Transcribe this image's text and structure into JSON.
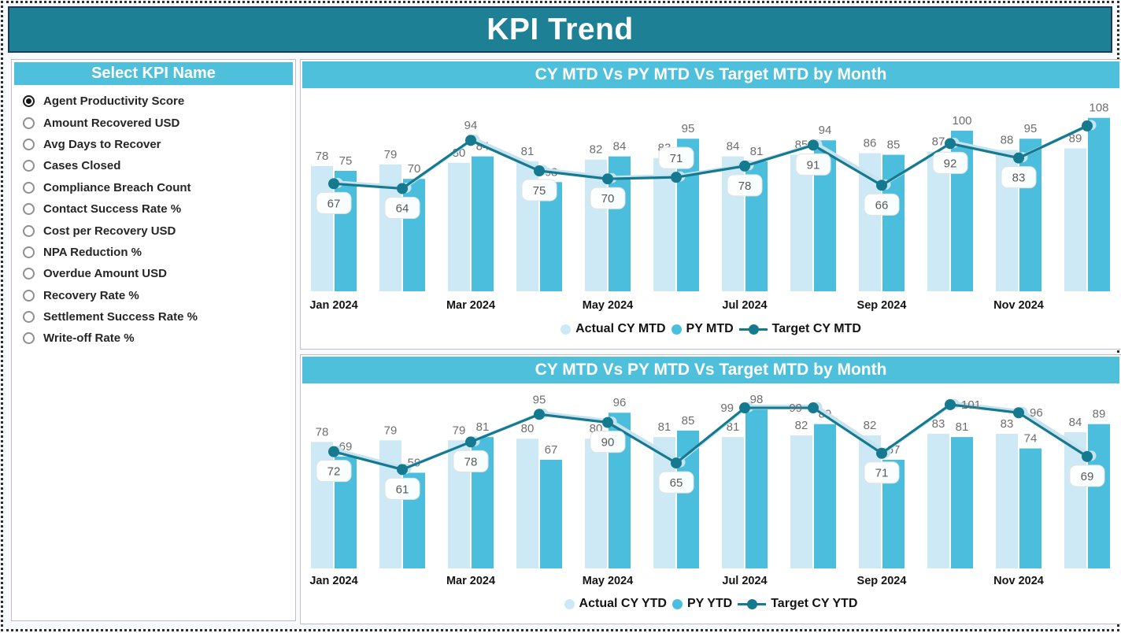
{
  "header": {
    "title": "KPI Trend"
  },
  "sidebar": {
    "header": "Select KPI Name",
    "options": [
      {
        "label": "Agent Productivity Score",
        "selected": true
      },
      {
        "label": "Amount Recovered USD",
        "selected": false
      },
      {
        "label": "Avg Days to Recover",
        "selected": false
      },
      {
        "label": "Cases Closed",
        "selected": false
      },
      {
        "label": "Compliance Breach Count",
        "selected": false
      },
      {
        "label": "Contact Success Rate %",
        "selected": false
      },
      {
        "label": "Cost per Recovery USD",
        "selected": false
      },
      {
        "label": "NPA Reduction %",
        "selected": false
      },
      {
        "label": "Overdue Amount USD",
        "selected": false
      },
      {
        "label": "Recovery Rate %",
        "selected": false
      },
      {
        "label": "Settlement Success Rate %",
        "selected": false
      },
      {
        "label": "Write-off Rate %",
        "selected": false
      }
    ]
  },
  "chart_data": [
    {
      "type": "combo bar+line",
      "title": "CY MTD Vs PY MTD Vs Target MTD by Month",
      "categories": [
        "Jan 2024",
        "Feb 2024",
        "Mar 2024",
        "Apr 2024",
        "May 2024",
        "Jun 2024",
        "Jul 2024",
        "Aug 2024",
        "Sep 2024",
        "Oct 2024",
        "Nov 2024",
        "Dec 2024"
      ],
      "x_axis_ticks_shown": [
        "Jan 2024",
        "Mar 2024",
        "May 2024",
        "Jul 2024",
        "Sep 2024",
        "Nov 2024"
      ],
      "ylim": [
        0,
        115
      ],
      "grid": false,
      "legend_position": "bottom",
      "series": [
        {
          "name": "Actual CY MTD",
          "type": "bar",
          "values": [
            78,
            79,
            80,
            81,
            82,
            83,
            84,
            85,
            86,
            87,
            88,
            89
          ]
        },
        {
          "name": "PY MTD",
          "type": "bar",
          "values": [
            75,
            70,
            84,
            68,
            84,
            95,
            81,
            94,
            85,
            100,
            95,
            108
          ]
        },
        {
          "name": "Target CY MTD",
          "type": "line",
          "values": [
            67,
            64,
            94,
            75,
            70,
            71,
            78,
            91,
            66,
            92,
            83,
            103
          ],
          "label_styles": [
            "boxed-below",
            "boxed-below",
            "plain-above",
            "boxed-below",
            "boxed-below",
            "boxed-above",
            "boxed-below",
            "boxed-below",
            "boxed-below",
            "boxed-below",
            "boxed-below",
            "hidden"
          ]
        }
      ]
    },
    {
      "type": "combo bar+line",
      "title": "CY MTD Vs PY MTD Vs Target MTD by Month",
      "categories": [
        "Jan 2024",
        "Feb 2024",
        "Mar 2024",
        "Apr 2024",
        "May 2024",
        "Jun 2024",
        "Jul 2024",
        "Aug 2024",
        "Sep 2024",
        "Oct 2024",
        "Nov 2024",
        "Dec 2024"
      ],
      "x_axis_ticks_shown": [
        "Jan 2024",
        "Mar 2024",
        "May 2024",
        "Jul 2024",
        "Sep 2024",
        "Nov 2024"
      ],
      "ylim": [
        0,
        110
      ],
      "grid": false,
      "legend_position": "bottom",
      "series": [
        {
          "name": "Actual CY YTD",
          "type": "bar",
          "values": [
            78,
            79,
            79,
            80,
            80,
            81,
            81,
            82,
            82,
            83,
            83,
            84
          ]
        },
        {
          "name": "PY YTD",
          "type": "bar",
          "values": [
            69,
            59,
            81,
            67,
            96,
            85,
            98,
            89,
            67,
            81,
            74,
            89
          ]
        },
        {
          "name": "Target CY YTD",
          "type": "line",
          "values": [
            72,
            61,
            78,
            95,
            90,
            65,
            99,
            99,
            71,
            101,
            96,
            69
          ],
          "label_styles": [
            "boxed-below",
            "boxed-below",
            "boxed-below",
            "plain-above",
            "boxed-below",
            "boxed-below",
            "plain-left",
            "plain-left",
            "boxed-below",
            "plain-right",
            "plain-right",
            "boxed-below"
          ]
        }
      ]
    }
  ],
  "colors": {
    "header_band": "#1E8094",
    "header_border": "#1C3A5E",
    "title_band": "#4FC0DC",
    "actual_bar": "#CDE9F5",
    "py_bar": "#4CBEDD",
    "target_line": "#15798F",
    "line_halo": "#C7E3F0",
    "bar_label": "#6E6E6E",
    "boxed_label_text": "#585858",
    "month_label": "#141414",
    "panel_border": "#C9BBC5"
  }
}
